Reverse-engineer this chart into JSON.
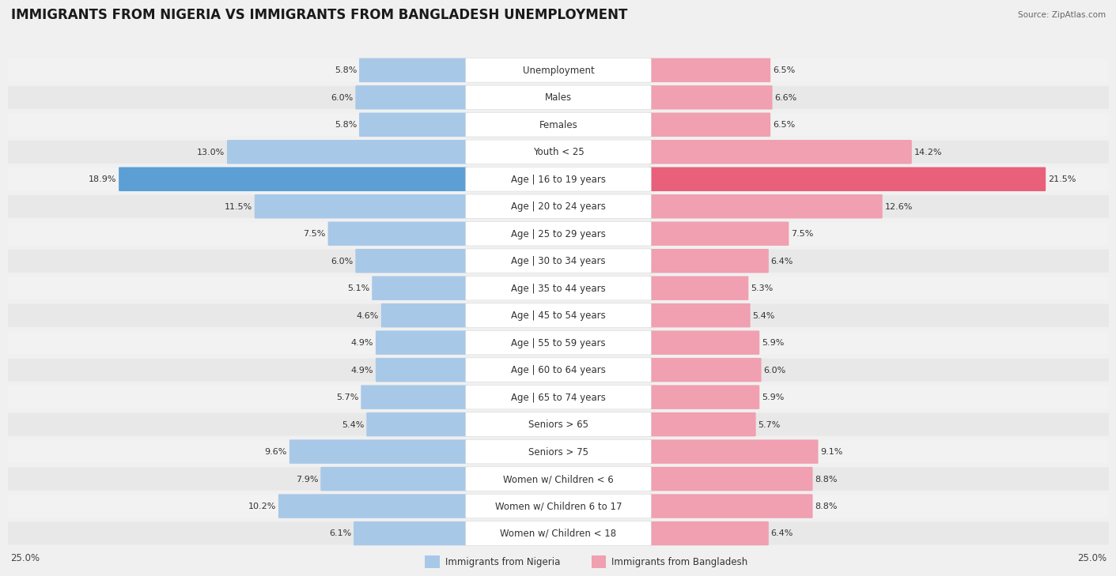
{
  "title": "IMMIGRANTS FROM NIGERIA VS IMMIGRANTS FROM BANGLADESH UNEMPLOYMENT",
  "source": "Source: ZipAtlas.com",
  "categories": [
    "Unemployment",
    "Males",
    "Females",
    "Youth < 25",
    "Age | 16 to 19 years",
    "Age | 20 to 24 years",
    "Age | 25 to 29 years",
    "Age | 30 to 34 years",
    "Age | 35 to 44 years",
    "Age | 45 to 54 years",
    "Age | 55 to 59 years",
    "Age | 60 to 64 years",
    "Age | 65 to 74 years",
    "Seniors > 65",
    "Seniors > 75",
    "Women w/ Children < 6",
    "Women w/ Children 6 to 17",
    "Women w/ Children < 18"
  ],
  "nigeria_values": [
    5.8,
    6.0,
    5.8,
    13.0,
    18.9,
    11.5,
    7.5,
    6.0,
    5.1,
    4.6,
    4.9,
    4.9,
    5.7,
    5.4,
    9.6,
    7.9,
    10.2,
    6.1
  ],
  "bangladesh_values": [
    6.5,
    6.6,
    6.5,
    14.2,
    21.5,
    12.6,
    7.5,
    6.4,
    5.3,
    5.4,
    5.9,
    6.0,
    5.9,
    5.7,
    9.1,
    8.8,
    8.8,
    6.4
  ],
  "nigeria_color": "#a8c8e8",
  "bangladesh_color": "#f0a0b0",
  "nigeria_highlight_color": "#5b9fd4",
  "bangladesh_highlight_color": "#e8607a",
  "row_bg_colors": [
    "#f2f2f2",
    "#e8e8e8"
  ],
  "bar_inner_bg": "#ffffff",
  "fig_bg": "#f0f0f0",
  "axis_limit": 25.0,
  "title_fontsize": 12,
  "label_fontsize": 8.5,
  "value_fontsize": 8,
  "legend_nigeria": "Immigrants from Nigeria",
  "legend_bangladesh": "Immigrants from Bangladesh"
}
